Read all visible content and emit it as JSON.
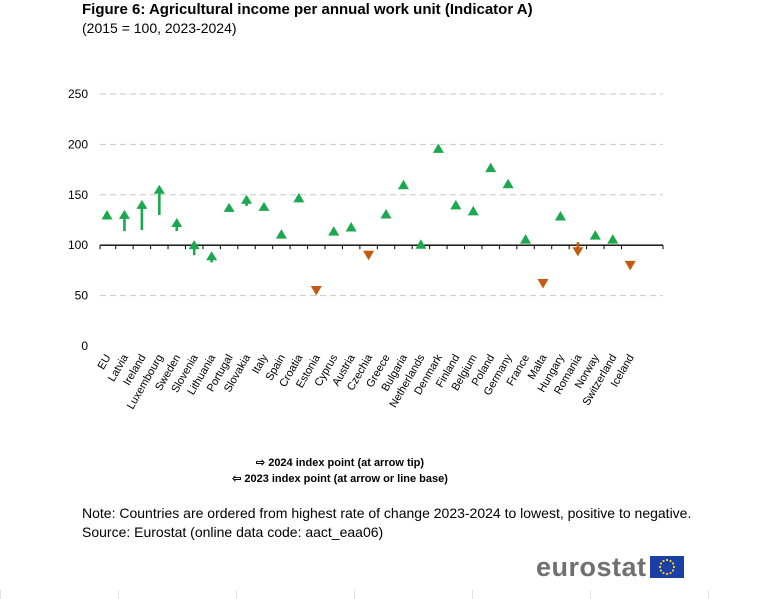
{
  "chart_data": {
    "type": "scatter",
    "title": "Figure 6: Agricultural income per annual work unit (Indicator A)",
    "subtitle": "(2015 = 100, 2023-2024)",
    "ylim": [
      0,
      250
    ],
    "yticks": [
      0,
      50,
      100,
      150,
      200,
      250
    ],
    "baseline": 100,
    "grid": true,
    "colors": {
      "increase": "#1ba84e",
      "decrease": "#c4590f"
    },
    "categories": [
      "EU",
      "Latvia",
      "Ireland",
      "Luxembourg",
      "Sweden",
      "Slovenia",
      "Lithuania",
      "Portugal",
      "Slovakia",
      "Italy",
      "Spain",
      "Croatia",
      "Estonia",
      "Cyprus",
      "Austria",
      "Czechia",
      "Greece",
      "Bulgaria",
      "Netherlands",
      "Denmark",
      "Finland",
      "Belgium",
      "Poland",
      "Germany",
      "France",
      "Malta",
      "Hungary",
      "Romania",
      "Norway",
      "Switzerland",
      "Iceland"
    ],
    "series": [
      {
        "name": "2023 index point (at arrow or line base)",
        "values": [
          null,
          114,
          115,
          130,
          114,
          90,
          83,
          133,
          139,
          136,
          null,
          null,
          null,
          null,
          null,
          null,
          null,
          null,
          null,
          null,
          null,
          null,
          null,
          null,
          null,
          null,
          null,
          103,
          null,
          null,
          null
        ]
      },
      {
        "name": "2024 index point (at arrow tip)",
        "values": [
          130,
          135,
          145,
          160,
          127,
          105,
          94,
          142,
          150,
          143,
          111,
          147,
          55,
          114,
          118,
          90,
          131,
          160,
          101,
          196,
          140,
          134,
          177,
          161,
          106,
          62,
          129,
          89,
          110,
          106,
          80
        ]
      }
    ]
  },
  "legend": {
    "entry_2024": "⇨ 2024 index point (at arrow tip)",
    "entry_2023": "⇦ 2023 index point (at arrow or line base)"
  },
  "note": {
    "line1": "Note: Countries are ordered from highest rate of change 2023-2024 to lowest, positive to negative.",
    "line2": "Source: Eurostat (online data code: aact_eaa06)"
  },
  "logo": {
    "text": "eurostat"
  }
}
